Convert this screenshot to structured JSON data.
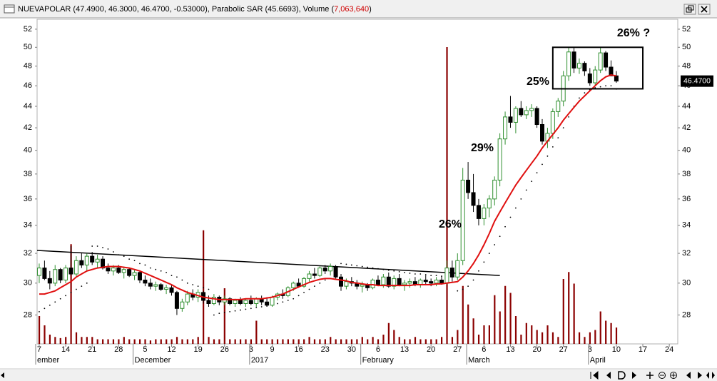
{
  "chart_data": {
    "type": "candlestick",
    "title_parts": [
      "NUEVAPOLAR (47.4900, 46.3000, 46.4700, -0.53000), Parabolic SAR (45.6693), Volume (",
      "7,063,640",
      ")"
    ],
    "categories": [
      "7",
      null,
      null,
      null,
      null,
      "14",
      null,
      null,
      null,
      null,
      "21",
      null,
      null,
      null,
      null,
      "28",
      null,
      null,
      null,
      null,
      "5",
      null,
      null,
      null,
      null,
      "12",
      null,
      null,
      null,
      null,
      "19",
      null,
      null,
      null,
      null,
      "26",
      null,
      null,
      null,
      null,
      "3",
      null,
      null,
      null,
      "9",
      null,
      null,
      null,
      null,
      "16",
      null,
      null,
      null,
      null,
      "23",
      null,
      null,
      null,
      null,
      "30",
      null,
      null,
      null,
      null,
      "6",
      null,
      null,
      null,
      null,
      "13",
      null,
      null,
      null,
      null,
      "20",
      null,
      null,
      null,
      null,
      "27",
      null,
      null,
      null,
      null,
      "6",
      null,
      null,
      null,
      null,
      "13",
      null,
      null,
      null,
      null,
      "20",
      null,
      null,
      null,
      null,
      "27",
      null,
      null,
      null,
      null,
      "3",
      null,
      null,
      null,
      null,
      "10",
      null,
      null,
      null,
      null,
      "17",
      null,
      null,
      null,
      null,
      "24",
      null
    ],
    "month_labels": [
      "ember",
      "December",
      "2017",
      "February",
      "March",
      "April"
    ],
    "ohlc": [
      [
        30.5,
        31.3,
        30.0,
        31.0
      ],
      [
        31,
        31.5,
        30.2,
        30.3
      ],
      [
        30.3,
        30.8,
        29.6,
        30.0
      ],
      [
        30,
        31.2,
        29.8,
        30.9
      ],
      [
        30.9,
        31.0,
        30.0,
        30.2
      ],
      [
        30.2,
        31.2,
        30.0,
        31.0
      ],
      [
        31,
        32.5,
        30.5,
        30.6
      ],
      [
        30.6,
        31.8,
        30.4,
        31.5
      ],
      [
        31.5,
        32.0,
        31.0,
        31.2
      ],
      [
        31.2,
        32.0,
        30.8,
        31.8
      ],
      [
        31.8,
        32.1,
        31.2,
        31.4
      ],
      [
        31.4,
        31.9,
        31.0,
        31.6
      ],
      [
        31.6,
        31.8,
        30.9,
        31.0
      ],
      [
        31,
        31.3,
        30.6,
        30.8
      ],
      [
        30.8,
        31.2,
        30.5,
        31.0
      ],
      [
        31,
        31.2,
        30.6,
        30.7
      ],
      [
        30.7,
        31.1,
        30.3,
        30.9
      ],
      [
        30.9,
        31.0,
        30.4,
        30.5
      ],
      [
        30.5,
        30.9,
        30.2,
        30.7
      ],
      [
        30.7,
        30.8,
        30.0,
        30.2
      ],
      [
        30.2,
        30.5,
        29.8,
        30.0
      ],
      [
        30,
        30.3,
        29.6,
        29.8
      ],
      [
        29.8,
        30.1,
        29.5,
        29.9
      ],
      [
        29.9,
        30.0,
        29.5,
        29.6
      ],
      [
        29.6,
        29.9,
        29.3,
        29.7
      ],
      [
        29.7,
        29.9,
        29.2,
        29.4
      ],
      [
        29.4,
        29.5,
        28.0,
        28.4
      ],
      [
        28.4,
        29.0,
        28.2,
        28.8
      ],
      [
        28.8,
        29.5,
        28.6,
        29.3
      ],
      [
        29.3,
        29.6,
        28.9,
        29.1
      ],
      [
        29.1,
        29.6,
        28.8,
        29.4
      ],
      [
        29.4,
        29.5,
        28.7,
        28.9
      ],
      [
        28.9,
        29.2,
        28.5,
        28.7
      ],
      [
        28.7,
        29.3,
        28.6,
        29.1
      ],
      [
        29.1,
        29.2,
        28.6,
        28.8
      ],
      [
        28.8,
        29.2,
        28.6,
        29.0
      ],
      [
        29,
        29.1,
        28.6,
        28.7
      ],
      [
        28.7,
        29.0,
        28.5,
        28.9
      ],
      [
        28.9,
        29.1,
        28.6,
        28.7
      ],
      [
        28.7,
        29.0,
        28.5,
        28.9
      ],
      [
        28.9,
        29.2,
        28.6,
        28.7
      ],
      [
        28.7,
        29.1,
        28.5,
        29.0
      ],
      [
        29,
        29.2,
        28.6,
        28.8
      ],
      [
        28.8,
        29.1,
        28.5,
        28.6
      ],
      [
        28.6,
        29.2,
        28.5,
        29.1
      ],
      [
        29.1,
        29.4,
        28.9,
        29.3
      ],
      [
        29.3,
        29.6,
        29.0,
        29.2
      ],
      [
        29.2,
        29.8,
        29.1,
        29.7
      ],
      [
        29.7,
        30.1,
        29.5,
        30.0
      ],
      [
        30,
        30.3,
        29.7,
        29.8
      ],
      [
        29.8,
        30.4,
        29.7,
        30.3
      ],
      [
        30.3,
        30.8,
        30.1,
        30.6
      ],
      [
        30.6,
        31.0,
        30.3,
        30.5
      ],
      [
        30.5,
        31.1,
        30.4,
        31.0
      ],
      [
        31,
        31.2,
        30.6,
        30.8
      ],
      [
        30.8,
        31.3,
        30.5,
        31.1
      ],
      [
        31.1,
        31.2,
        30.3,
        30.4
      ],
      [
        30.4,
        30.6,
        29.5,
        29.8
      ],
      [
        29.8,
        30.3,
        29.6,
        30.1
      ],
      [
        30.1,
        30.4,
        29.8,
        30.0
      ],
      [
        30,
        30.2,
        29.6,
        29.8
      ],
      [
        29.8,
        30.1,
        29.4,
        29.9
      ],
      [
        29.9,
        30.0,
        29.5,
        29.7
      ],
      [
        29.7,
        30.3,
        29.6,
        30.2
      ],
      [
        30.2,
        30.5,
        29.8,
        29.9
      ],
      [
        29.9,
        30.6,
        29.7,
        30.4
      ],
      [
        30.4,
        30.7,
        29.7,
        29.8
      ],
      [
        29.8,
        30.5,
        29.6,
        30.3
      ],
      [
        30.3,
        30.6,
        29.8,
        29.9
      ],
      [
        29.9,
        30.2,
        29.5,
        30.0
      ],
      [
        30,
        30.3,
        29.7,
        30.1
      ],
      [
        30.1,
        30.4,
        29.8,
        29.9
      ],
      [
        29.9,
        30.3,
        29.7,
        30.2
      ],
      [
        30.2,
        30.5,
        29.9,
        30.1
      ],
      [
        30.1,
        30.3,
        29.8,
        30.0
      ],
      [
        30,
        30.4,
        29.8,
        30.2
      ],
      [
        30.2,
        30.5,
        29.9,
        30.0
      ],
      [
        30,
        31.5,
        29.9,
        31.0
      ],
      [
        31,
        31.5,
        30.1,
        30.4
      ],
      [
        30.4,
        32.0,
        30.2,
        31.5
      ],
      [
        31.5,
        38.5,
        31.2,
        37.5
      ],
      [
        37.5,
        39.0,
        36.0,
        36.5
      ],
      [
        36.5,
        38.0,
        35.0,
        35.5
      ],
      [
        35.5,
        36.0,
        34.0,
        34.5
      ],
      [
        34.5,
        35.6,
        34.0,
        35.3
      ],
      [
        35.3,
        36.3,
        34.6,
        36.0
      ],
      [
        36,
        37.8,
        35.5,
        37.5
      ],
      [
        37.5,
        41.5,
        37.0,
        41.0
      ],
      [
        41,
        43.5,
        40.5,
        43.0
      ],
      [
        43,
        45.0,
        42.0,
        42.5
      ],
      [
        42.5,
        44.0,
        41.5,
        43.8
      ],
      [
        43.8,
        44.5,
        43.0,
        43.2
      ],
      [
        43.2,
        44.0,
        42.8,
        43.6
      ],
      [
        43.6,
        44.2,
        43.0,
        43.8
      ],
      [
        43.8,
        44.0,
        42.0,
        42.3
      ],
      [
        42.3,
        42.8,
        40.5,
        40.8
      ],
      [
        40.8,
        42.0,
        40.2,
        41.5
      ],
      [
        41.5,
        43.8,
        41.0,
        43.5
      ],
      [
        43.5,
        44.8,
        43.0,
        44.5
      ],
      [
        44.5,
        47.5,
        44.0,
        47.0
      ],
      [
        47,
        50.0,
        46.5,
        49.5
      ],
      [
        49.5,
        50.0,
        47.3,
        47.8
      ],
      [
        47.8,
        48.8,
        47.2,
        48.3
      ],
      [
        48.3,
        48.5,
        47.0,
        47.5
      ],
      [
        47.2,
        47.8,
        46.0,
        46.3
      ],
      [
        46.3,
        48.0,
        46.0,
        47.6
      ],
      [
        47.6,
        50.0,
        47.3,
        49.4
      ],
      [
        49.4,
        49.6,
        47.5,
        47.9
      ],
      [
        47.9,
        48.6,
        47.0,
        47.0
      ],
      [
        47.0,
        47.49,
        46.3,
        46.47
      ],
      null,
      null,
      null,
      null,
      null,
      null,
      null,
      null,
      null,
      null,
      null
    ],
    "volume": [
      12000000,
      8000000,
      4000000,
      3000000,
      2500000,
      3000000,
      43000000,
      5000000,
      3000000,
      3000000,
      3000000,
      2000000,
      2000000,
      2000000,
      2000000,
      2000000,
      3000000,
      2000000,
      2000000,
      2000000,
      2000000,
      1500000,
      2000000,
      2000000,
      2000000,
      2000000,
      3000000,
      2000000,
      2000000,
      2000000,
      3000000,
      49000000,
      3000000,
      2000000,
      2000000,
      24000000,
      2000000,
      2000000,
      2000000,
      2000000,
      2000000,
      10000000,
      2000000,
      2000000,
      2000000,
      2000000,
      2000000,
      2000000,
      2000000,
      2000000,
      2000000,
      3000000,
      2000000,
      2000000,
      2000000,
      3000000,
      2000000,
      2000000,
      2000000,
      2000000,
      2000000,
      3000000,
      2000000,
      3000000,
      2000000,
      4000000,
      9000000,
      6000000,
      3000000,
      2000000,
      2000000,
      3000000,
      2000000,
      2000000,
      2000000,
      2000000,
      3000000,
      128000000,
      3000000,
      6000000,
      25000000,
      17000000,
      11000000,
      4000000,
      8000000,
      8000000,
      21000000,
      14000000,
      25000000,
      22000000,
      12000000,
      4000000,
      9000000,
      8000000,
      6000000,
      5000000,
      8000000,
      5000000,
      3000000,
      28000000,
      31000000,
      26000000,
      5000000,
      3000000,
      5000000,
      6000000,
      14000000,
      10000000,
      9000000,
      7063640,
      null,
      null,
      null,
      null,
      null,
      null,
      null,
      null,
      null,
      null,
      null
    ],
    "ma": [
      29.3,
      29.3,
      29.4,
      29.5,
      29.7,
      29.9,
      30.1,
      30.4,
      30.6,
      30.8,
      30.9,
      31.0,
      31.05,
      31.1,
      31.1,
      31.1,
      31.05,
      31.0,
      30.9,
      30.8,
      30.65,
      30.5,
      30.35,
      30.2,
      30.05,
      29.9,
      29.7,
      29.55,
      29.4,
      29.3,
      29.2,
      29.1,
      29.05,
      29.0,
      28.95,
      28.95,
      28.95,
      28.95,
      28.95,
      29.0,
      29.0,
      29.0,
      29.0,
      29.05,
      29.1,
      29.2,
      29.3,
      29.45,
      29.6,
      29.75,
      29.9,
      30.05,
      30.15,
      30.25,
      30.3,
      30.3,
      30.25,
      30.2,
      30.15,
      30.05,
      30.0,
      29.95,
      29.9,
      29.9,
      29.85,
      29.85,
      29.85,
      29.85,
      29.85,
      29.85,
      29.85,
      29.9,
      29.9,
      29.9,
      29.9,
      29.95,
      29.95,
      30.0,
      30.05,
      30.1,
      30.4,
      30.8,
      31.3,
      31.9,
      32.6,
      33.4,
      34.3,
      35.0,
      35.7,
      36.4,
      37.1,
      37.7,
      38.3,
      38.9,
      39.5,
      40.2,
      40.8,
      41.4,
      42.0,
      42.7,
      43.3,
      43.9,
      44.5,
      45.0,
      45.5,
      46.0,
      46.5,
      46.9,
      47.1,
      47.0,
      null,
      null,
      null,
      null,
      null,
      null,
      null,
      null,
      null,
      null,
      null
    ],
    "sar": [
      28.2,
      28.4,
      28.6,
      28.8,
      29.0,
      29.2,
      29.4,
      29.6,
      29.8,
      30.0,
      32.5,
      32.5,
      32.4,
      32.3,
      32.1,
      31.9,
      31.8,
      31.6,
      31.5,
      31.3,
      31.2,
      31.0,
      30.9,
      30.8,
      30.7,
      30.5,
      30.4,
      30.2,
      30.0,
      29.9,
      29.8,
      29.7,
      29.6,
      28.0,
      28.1,
      28.15,
      28.2,
      28.25,
      28.3,
      28.35,
      28.4,
      28.45,
      28.5,
      28.55,
      28.6,
      28.7,
      28.8,
      28.9,
      29.0,
      29.2,
      29.4,
      29.6,
      29.8,
      30.0,
      30.2,
      30.3,
      30.4,
      31.3,
      31.25,
      31.2,
      31.15,
      31.1,
      31.05,
      31.0,
      30.95,
      30.9,
      30.85,
      30.8,
      30.75,
      30.7,
      30.65,
      30.6,
      30.6,
      30.55,
      30.5,
      30.5,
      30.45,
      30.45,
      30.4,
      29.5,
      29.6,
      29.8,
      30.2,
      30.8,
      31.4,
      32.0,
      32.6,
      33.2,
      33.9,
      34.6,
      35.3,
      36.0,
      36.7,
      37.4,
      38.1,
      38.8,
      39.5,
      40.3,
      41.1,
      42.0,
      43.0,
      44.0,
      44.8,
      45.3,
      45.6,
      45.8,
      45.9,
      46.0,
      46.0,
      45.6693,
      null,
      null,
      null,
      null,
      null,
      null,
      null,
      null,
      null,
      null,
      null
    ],
    "trendline": {
      "indices": [
        0,
        87
      ],
      "values": [
        32.2,
        30.5
      ]
    },
    "box": {
      "from": 97,
      "to": 114,
      "low": 45.7,
      "high": 50
    },
    "annotations": [
      "26%",
      "29%",
      "25%",
      "26% ?"
    ],
    "price_tag": {
      "value": 46.47,
      "label": "46.4700"
    },
    "ylim": [
      26.3,
      53.13
    ],
    "yticks": [
      28,
      30,
      32,
      34,
      36,
      38,
      40,
      42,
      44,
      46,
      48,
      50,
      52
    ],
    "log_scale": true,
    "vlim": [
      0,
      140000000
    ],
    "colors": {
      "up": "#2f8f2f",
      "down": "#000000",
      "volume": "#8b0000",
      "ma": "#e01010",
      "sar": "#000000",
      "trendline": "#000000"
    }
  }
}
